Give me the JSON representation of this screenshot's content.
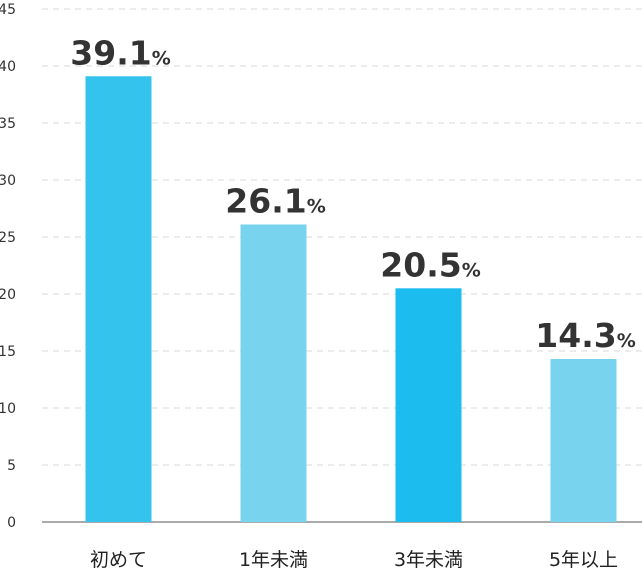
{
  "chart_data": {
    "type": "bar",
    "categories": [
      "初めて",
      "1年未満",
      "3年未満",
      "5年以上"
    ],
    "values": [
      39.1,
      26.1,
      20.5,
      14.3
    ],
    "value_labels": [
      "39.1",
      "26.1",
      "20.5",
      "14.3"
    ],
    "unit_suffix": "%",
    "yticks": [
      "0",
      "5",
      "10",
      "15",
      "20",
      "25",
      "30",
      "35",
      "40",
      "45"
    ],
    "ylim": [
      0,
      45
    ],
    "grid": true,
    "bar_colors": [
      "#33c3ec",
      "#77d3ee",
      "#1cbcee",
      "#77d3ee"
    ],
    "title": "",
    "xlabel": "",
    "ylabel": ""
  }
}
